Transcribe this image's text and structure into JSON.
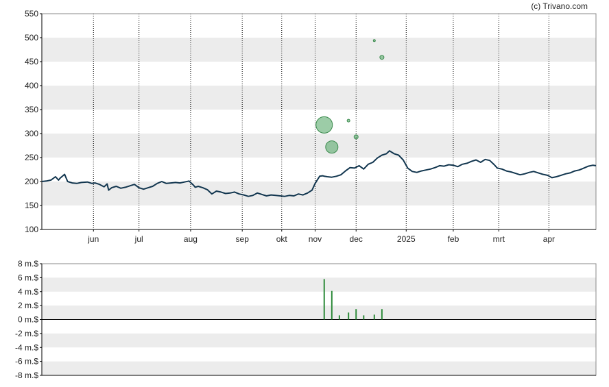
{
  "copyright": "(c) Trivano.com",
  "colors": {
    "line": "#12364f",
    "band": "#ececec",
    "bubble_fill": "#5aaa6c",
    "bubble_stroke": "#3a8a4c",
    "volume_bar": "#2e8b3a",
    "axis": "#000000"
  },
  "chart_data": [
    {
      "type": "line",
      "ylim": [
        100,
        550
      ],
      "yticks": [
        "100",
        "150",
        "200",
        "250",
        "300",
        "350",
        "400",
        "450",
        "500",
        "550"
      ],
      "ytick_values": [
        100,
        150,
        200,
        250,
        300,
        350,
        400,
        450,
        500,
        550
      ],
      "xlim": [
        0,
        365
      ],
      "month_labels": [
        "jun",
        "jul",
        "aug",
        "sep",
        "okt",
        "nov",
        "dec",
        "2025",
        "feb",
        "mrt",
        "apr"
      ],
      "month_positions": [
        34,
        64,
        98,
        132,
        158,
        180,
        207,
        240,
        271,
        301,
        334
      ],
      "grid": "horizontal bands, vertical dotted month lines",
      "series": [
        {
          "x": [
            0,
            3,
            6,
            9,
            11,
            12,
            15,
            17,
            20,
            23,
            26,
            30,
            33,
            35,
            38,
            41,
            43,
            44,
            46,
            49,
            52,
            55,
            58,
            61,
            64,
            67,
            70,
            73,
            76,
            79,
            82,
            85,
            88,
            91,
            94,
            97,
            100,
            101,
            103,
            106,
            109,
            112,
            115,
            118,
            121,
            124,
            127,
            130,
            133,
            136,
            139,
            142,
            145,
            148,
            151,
            154,
            157,
            160,
            163,
            166,
            169,
            172,
            175,
            178,
            180,
            183,
            185,
            186,
            188,
            191,
            194,
            197,
            200,
            203,
            206,
            209,
            212,
            215,
            218,
            221,
            224,
            227,
            229,
            230,
            232,
            235,
            238,
            241,
            244,
            247,
            250,
            253,
            256,
            259,
            262,
            265,
            268,
            271,
            274,
            277,
            280,
            283,
            286,
            289,
            292,
            295,
            298,
            300,
            303,
            306,
            309,
            312,
            315,
            318,
            321,
            324,
            327,
            330,
            333,
            336,
            339,
            342,
            345,
            348,
            351,
            354,
            357,
            360,
            363,
            365
          ],
          "values": [
            200,
            201,
            203,
            210,
            203,
            207,
            215,
            200,
            197,
            196,
            198,
            199,
            196,
            197,
            194,
            189,
            195,
            182,
            187,
            190,
            186,
            188,
            191,
            194,
            187,
            184,
            187,
            190,
            196,
            200,
            196,
            197,
            198,
            197,
            199,
            201,
            192,
            188,
            190,
            187,
            183,
            174,
            180,
            178,
            175,
            176,
            178,
            174,
            172,
            169,
            171,
            176,
            173,
            170,
            172,
            171,
            170,
            169,
            171,
            170,
            174,
            172,
            176,
            182,
            196,
            211,
            212,
            211,
            210,
            209,
            211,
            214,
            222,
            229,
            228,
            233,
            226,
            236,
            240,
            249,
            255,
            258,
            264,
            262,
            258,
            255,
            245,
            228,
            221,
            219,
            222,
            224,
            226,
            229,
            233,
            232,
            235,
            234,
            231,
            236,
            238,
            242,
            245,
            240,
            246,
            244,
            235,
            228,
            226,
            222,
            220,
            217,
            214,
            216,
            219,
            221,
            218,
            215,
            213,
            208,
            210,
            213,
            216,
            218,
            222,
            224,
            228,
            232,
            234,
            233
          ]
        }
      ],
      "bubbles": [
        {
          "x": 186,
          "y": 318,
          "r": 12
        },
        {
          "x": 191,
          "y": 272,
          "r": 9
        },
        {
          "x": 202,
          "y": 327,
          "r": 2
        },
        {
          "x": 207,
          "y": 293,
          "r": 3
        },
        {
          "x": 219,
          "y": 494,
          "r": 1.5
        },
        {
          "x": 224,
          "y": 459,
          "r": 3
        }
      ]
    },
    {
      "type": "bar",
      "ylim": [
        -8,
        8
      ],
      "yticks": [
        "8 m.$",
        "6 m.$",
        "4 m.$",
        "2 m.$",
        "0 m.$",
        "-2 m.$",
        "-4 m.$",
        "-6 m.$",
        "-8 m.$"
      ],
      "ytick_values": [
        8,
        6,
        4,
        2,
        0,
        -2,
        -4,
        -6,
        -8
      ],
      "xlim": [
        0,
        365
      ],
      "bars": [
        {
          "x": 186,
          "value": 5.8
        },
        {
          "x": 191,
          "value": 4.1
        },
        {
          "x": 196,
          "value": 0.6
        },
        {
          "x": 202,
          "value": 1.0
        },
        {
          "x": 207,
          "value": 1.5
        },
        {
          "x": 212,
          "value": 0.6
        },
        {
          "x": 219,
          "value": 0.7
        },
        {
          "x": 224,
          "value": 1.5
        }
      ]
    }
  ]
}
